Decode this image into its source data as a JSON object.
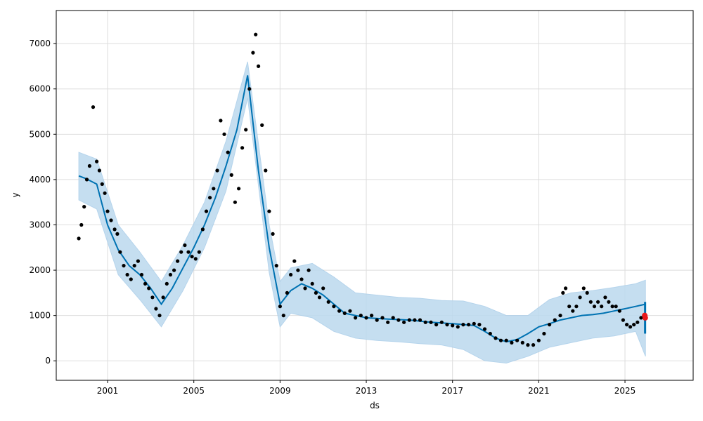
{
  "chart_data": {
    "type": "line",
    "title": "",
    "xlabel": "ds",
    "ylabel": "y",
    "x_ticks": [
      "2001",
      "2005",
      "2009",
      "2013",
      "2017",
      "2021",
      "2025"
    ],
    "y_ticks": [
      "0",
      "1000",
      "2000",
      "3000",
      "4000",
      "5000",
      "6000",
      "7000"
    ],
    "xlim": [
      "1998-08-15",
      "2028-03-01"
    ],
    "ylim": [
      -430,
      7730
    ],
    "grid": true,
    "legend": "none",
    "colors": {
      "observed": "#000000",
      "forecast": "#0072B2",
      "interval": "#bcd9ee",
      "highlight": "#e8181c"
    },
    "series": [
      {
        "kind": "observed",
        "x": [
          "1999-09-01",
          "1999-10-15",
          "1999-12-01",
          "2000-01-15",
          "2000-03-01",
          "2000-05-01",
          "2000-07-01",
          "2000-08-15",
          "2000-10-01",
          "2000-11-15",
          "2001-01-01",
          "2001-03-01",
          "2001-05-01",
          "2001-06-15",
          "2001-08-01",
          "2001-10-01",
          "2001-12-01",
          "2002-02-01",
          "2002-04-01",
          "2002-06-01",
          "2002-08-01",
          "2002-10-01",
          "2002-12-01",
          "2003-02-01",
          "2003-04-01",
          "2003-06-01",
          "2003-08-01",
          "2003-10-01",
          "2003-12-01",
          "2004-02-01",
          "2004-04-01",
          "2004-06-01",
          "2004-08-01",
          "2004-10-01",
          "2004-12-01",
          "2005-02-01",
          "2005-04-01",
          "2005-06-01",
          "2005-08-01",
          "2005-10-01",
          "2005-12-01",
          "2006-02-01",
          "2006-04-01",
          "2006-06-01",
          "2006-08-01",
          "2006-10-01",
          "2006-12-01",
          "2007-02-01",
          "2007-04-01",
          "2007-06-01",
          "2007-08-01",
          "2007-10-01",
          "2007-11-15",
          "2008-01-01",
          "2008-03-01",
          "2008-05-01",
          "2008-07-01",
          "2008-09-01",
          "2008-11-01",
          "2009-01-01",
          "2009-03-01",
          "2009-05-01",
          "2009-07-01",
          "2009-09-01",
          "2009-11-01",
          "2010-01-01",
          "2010-03-01",
          "2010-05-01",
          "2010-07-01",
          "2010-09-01",
          "2010-11-01",
          "2011-01-01",
          "2011-04-01",
          "2011-07-01",
          "2011-10-01",
          "2012-01-01",
          "2012-04-01",
          "2012-07-01",
          "2012-10-01",
          "2013-01-01",
          "2013-04-01",
          "2013-07-01",
          "2013-10-01",
          "2014-01-01",
          "2014-04-01",
          "2014-07-01",
          "2014-10-01",
          "2015-01-01",
          "2015-04-01",
          "2015-07-01",
          "2015-10-01",
          "2016-01-01",
          "2016-04-01",
          "2016-07-01",
          "2016-10-01",
          "2017-01-01",
          "2017-04-01",
          "2017-07-01",
          "2017-10-01",
          "2018-01-01",
          "2018-04-01",
          "2018-07-01",
          "2018-10-01",
          "2019-01-01",
          "2019-04-01",
          "2019-07-01",
          "2019-10-01",
          "2020-01-01",
          "2020-04-01",
          "2020-07-01",
          "2020-10-01",
          "2021-01-01",
          "2021-04-01",
          "2021-07-01",
          "2021-10-01",
          "2022-01-01",
          "2022-02-15",
          "2022-04-01",
          "2022-06-01",
          "2022-08-01",
          "2022-10-01",
          "2022-12-01",
          "2023-02-01",
          "2023-04-01",
          "2023-06-01",
          "2023-08-01",
          "2023-10-01",
          "2023-12-01",
          "2024-02-01",
          "2024-04-01",
          "2024-06-01",
          "2024-08-01",
          "2024-10-01",
          "2024-12-01",
          "2025-02-01",
          "2025-04-01",
          "2025-06-01",
          "2025-08-01",
          "2025-10-01",
          "2025-12-01"
        ],
        "y": [
          2700,
          3000,
          3400,
          4000,
          4300,
          5600,
          4400,
          4200,
          3900,
          3700,
          3300,
          3100,
          2900,
          2800,
          2400,
          2100,
          1900,
          1800,
          2100,
          2200,
          1900,
          1700,
          1600,
          1400,
          1150,
          1000,
          1400,
          1700,
          1900,
          2000,
          2200,
          2400,
          2550,
          2400,
          2300,
          2250,
          2400,
          2900,
          3300,
          3600,
          3800,
          4200,
          5300,
          5000,
          4600,
          4100,
          3500,
          3800,
          4700,
          5100,
          6000,
          6800,
          7200,
          6500,
          5200,
          4200,
          3300,
          2800,
          2100,
          1200,
          1000,
          1500,
          1900,
          2200,
          2000,
          1800,
          1600,
          2000,
          1700,
          1500,
          1400,
          1600,
          1300,
          1200,
          1100,
          1050,
          1100,
          950,
          1000,
          950,
          1000,
          900,
          950,
          850,
          950,
          900,
          850,
          900,
          900,
          900,
          850,
          850,
          800,
          850,
          800,
          780,
          750,
          800,
          800,
          820,
          800,
          700,
          600,
          500,
          450,
          450,
          400,
          450,
          400,
          350,
          350,
          450,
          600,
          800,
          900,
          1000,
          1500,
          1600,
          1200,
          1100,
          1200,
          1400,
          1600,
          1500,
          1300,
          1200,
          1300,
          1200,
          1400,
          1300,
          1200,
          1200,
          1100,
          900,
          800,
          750,
          800,
          850,
          950,
          1000
        ]
      },
      {
        "kind": "forecast",
        "x": [
          "1999-09-01",
          "2000-01-01",
          "2000-07-01",
          "2001-01-01",
          "2001-07-01",
          "2002-01-01",
          "2002-07-01",
          "2003-01-01",
          "2003-07-01",
          "2004-01-01",
          "2004-07-01",
          "2005-01-01",
          "2005-07-01",
          "2006-01-01",
          "2006-07-01",
          "2007-01-01",
          "2007-07-01",
          "2008-01-01",
          "2008-07-01",
          "2009-01-01",
          "2009-07-01",
          "2010-01-01",
          "2010-07-01",
          "2011-01-01",
          "2011-07-01",
          "2012-01-01",
          "2013-01-01",
          "2014-01-01",
          "2015-01-01",
          "2016-01-01",
          "2017-01-01",
          "2018-01-01",
          "2018-07-01",
          "2019-01-01",
          "2019-07-01",
          "2020-01-01",
          "2020-07-01",
          "2021-01-01",
          "2021-07-01",
          "2022-01-01",
          "2022-07-01",
          "2023-01-01",
          "2023-07-01",
          "2024-01-01",
          "2024-07-01",
          "2025-01-01",
          "2025-07-01",
          "2025-12-15"
        ],
        "y": [
          4080,
          4020,
          3900,
          3000,
          2450,
          2100,
          1900,
          1600,
          1250,
          1600,
          2050,
          2500,
          3000,
          3600,
          4300,
          5100,
          6300,
          4200,
          2500,
          1250,
          1550,
          1700,
          1600,
          1450,
          1250,
          1050,
          950,
          920,
          900,
          850,
          820,
          780,
          650,
          500,
          420,
          470,
          600,
          750,
          820,
          900,
          950,
          1000,
          1020,
          1050,
          1100,
          1150,
          1200,
          1250
        ]
      }
    ],
    "interval": {
      "x": [
        "1999-09-01",
        "2000-07-01",
        "2001-07-01",
        "2002-07-01",
        "2003-07-01",
        "2004-07-01",
        "2005-07-01",
        "2006-07-01",
        "2007-07-01",
        "2008-07-01",
        "2009-01-01",
        "2009-07-01",
        "2010-07-01",
        "2011-07-01",
        "2012-07-01",
        "2013-07-01",
        "2014-07-01",
        "2015-07-01",
        "2016-07-01",
        "2017-07-01",
        "2018-07-01",
        "2019-07-01",
        "2020-07-01",
        "2021-07-01",
        "2022-07-01",
        "2023-07-01",
        "2024-07-01",
        "2025-07-01",
        "2025-12-15"
      ],
      "upper": [
        4600,
        4450,
        3000,
        2400,
        1750,
        2550,
        3500,
        4850,
        6600,
        3000,
        1750,
        2050,
        2150,
        1850,
        1500,
        1450,
        1400,
        1380,
        1330,
        1320,
        1200,
        1000,
        1000,
        1350,
        1500,
        1550,
        1620,
        1700,
        1780
      ],
      "lower": [
        3550,
        3350,
        1900,
        1350,
        750,
        1550,
        2500,
        3750,
        5800,
        1950,
        750,
        1050,
        950,
        650,
        500,
        450,
        420,
        380,
        350,
        250,
        0,
        -50,
        100,
        300,
        400,
        500,
        550,
        650,
        100
      ]
    },
    "highlight": {
      "x": [
        "2025-12-01",
        "2025-12-10"
      ],
      "y": [
        1000,
        950
      ]
    },
    "forecast_tail": {
      "x": [
        "2025-11-20",
        "2025-12-20"
      ],
      "y_low": 600,
      "y_high": 1300
    }
  }
}
